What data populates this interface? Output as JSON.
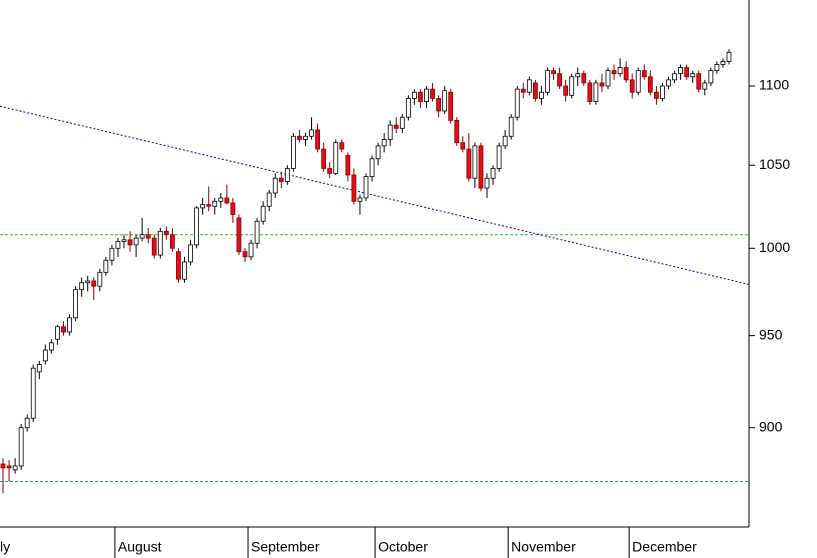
{
  "chart_data": {
    "type": "candlestick",
    "log_scale": true,
    "ylim": [
      849,
      1157
    ],
    "yticks": [
      900,
      950,
      1000,
      1050,
      1100
    ],
    "up_color": "#ffffff",
    "down_color": "#e0101a",
    "hlines": [
      {
        "value": 1008,
        "color": "#22bb22"
      },
      {
        "value": 872,
        "color": "#4477dd"
      }
    ],
    "trend_line": {
      "start": 1087,
      "end": 979,
      "color": "#0000aa"
    },
    "categories": [
      "ly",
      null,
      null,
      null,
      null,
      null,
      null,
      null,
      null,
      null,
      null,
      null,
      null,
      null,
      null,
      null,
      null,
      null,
      null,
      "August",
      null,
      null,
      null,
      null,
      null,
      null,
      null,
      null,
      null,
      null,
      null,
      null,
      null,
      null,
      null,
      null,
      null,
      null,
      null,
      null,
      null,
      "September",
      null,
      null,
      null,
      null,
      null,
      null,
      null,
      null,
      null,
      null,
      null,
      null,
      null,
      null,
      null,
      null,
      null,
      null,
      null,
      null,
      "October",
      null,
      null,
      null,
      null,
      null,
      null,
      null,
      null,
      null,
      null,
      null,
      null,
      null,
      null,
      null,
      null,
      null,
      null,
      null,
      null,
      null,
      "November",
      null,
      null,
      null,
      null,
      null,
      null,
      null,
      null,
      null,
      null,
      null,
      null,
      null,
      null,
      null,
      null,
      null,
      null,
      null,
      "December",
      null,
      null,
      null,
      null,
      null,
      null,
      null,
      null,
      null,
      null,
      null,
      null,
      null,
      null,
      null,
      null
    ],
    "open": [
      881,
      880,
      878,
      880,
      900,
      905,
      930,
      936,
      942,
      948,
      955,
      952,
      960,
      976,
      980,
      981,
      978,
      986,
      993,
      1000,
      1004,
      1005,
      1002,
      1006,
      1008,
      1006,
      996,
      1010,
      1008,
      998,
      982,
      992,
      1002,
      1024,
      1026,
      1025,
      1028,
      1030,
      1027,
      1018,
      998,
      995,
      1003,
      1016,
      1025,
      1033,
      1042,
      1040,
      1048,
      1068,
      1066,
      1068,
      1072,
      1060,
      1048,
      1045,
      1064,
      1056,
      1044,
      1028,
      1030,
      1043,
      1054,
      1062,
      1066,
      1075,
      1073,
      1080,
      1092,
      1096,
      1090,
      1098,
      1092,
      1084,
      1096,
      1078,
      1064,
      1060,
      1042,
      1062,
      1036,
      1042,
      1048,
      1062,
      1068,
      1080,
      1098,
      1096,
      1102,
      1092,
      1096,
      1110,
      1108,
      1100,
      1094,
      1106,
      1108,
      1102,
      1090,
      1102,
      1100,
      1110,
      1108,
      1112,
      1104,
      1096,
      1110,
      1106,
      1096,
      1092,
      1100,
      1104,
      1108,
      1112,
      1106,
      1108,
      1098,
      1102,
      1110,
      1114,
      1116
    ],
    "high": [
      884,
      883,
      884,
      902,
      907,
      934,
      936,
      945,
      948,
      956,
      958,
      962,
      978,
      983,
      984,
      983,
      988,
      995,
      1002,
      1006,
      1008,
      1010,
      1008,
      1018,
      1012,
      1008,
      1012,
      1013,
      1012,
      1000,
      995,
      1005,
      1025,
      1030,
      1037,
      1030,
      1033,
      1038,
      1030,
      1020,
      1000,
      1005,
      1018,
      1028,
      1035,
      1045,
      1046,
      1050,
      1070,
      1072,
      1070,
      1080,
      1076,
      1064,
      1052,
      1066,
      1066,
      1058,
      1048,
      1032,
      1045,
      1056,
      1064,
      1070,
      1078,
      1080,
      1082,
      1094,
      1098,
      1098,
      1100,
      1102,
      1094,
      1100,
      1098,
      1080,
      1068,
      1070,
      1064,
      1064,
      1045,
      1050,
      1064,
      1072,
      1082,
      1100,
      1102,
      1106,
      1104,
      1100,
      1112,
      1112,
      1112,
      1104,
      1108,
      1112,
      1110,
      1104,
      1104,
      1108,
      1112,
      1114,
      1118,
      1116,
      1108,
      1112,
      1114,
      1110,
      1100,
      1102,
      1106,
      1110,
      1114,
      1114,
      1110,
      1110,
      1104,
      1112,
      1116,
      1118,
      1124
    ],
    "low": [
      866,
      872,
      876,
      878,
      898,
      903,
      926,
      934,
      940,
      945,
      950,
      950,
      958,
      972,
      975,
      970,
      975,
      984,
      990,
      995,
      1000,
      998,
      995,
      1004,
      1003,
      994,
      994,
      1005,
      998,
      980,
      980,
      990,
      1000,
      1020,
      1022,
      1020,
      1024,
      1026,
      1015,
      996,
      992,
      993,
      1000,
      1014,
      1022,
      1030,
      1036,
      1038,
      1046,
      1064,
      1062,
      1066,
      1058,
      1046,
      1042,
      1044,
      1058,
      1040,
      1026,
      1020,
      1028,
      1040,
      1050,
      1058,
      1062,
      1070,
      1070,
      1078,
      1088,
      1086,
      1086,
      1090,
      1080,
      1082,
      1076,
      1062,
      1058,
      1040,
      1036,
      1034,
      1030,
      1038,
      1046,
      1060,
      1066,
      1078,
      1092,
      1094,
      1090,
      1088,
      1094,
      1104,
      1098,
      1090,
      1092,
      1100,
      1100,
      1088,
      1088,
      1096,
      1098,
      1104,
      1106,
      1102,
      1092,
      1094,
      1104,
      1094,
      1088,
      1090,
      1098,
      1102,
      1104,
      1104,
      1102,
      1096,
      1094,
      1100,
      1108,
      1112,
      1114
    ],
    "close": [
      879,
      879,
      880,
      900,
      905,
      932,
      934,
      942,
      946,
      955,
      952,
      960,
      976,
      980,
      981,
      978,
      986,
      993,
      1000,
      1004,
      1005,
      1002,
      1006,
      1008,
      1006,
      996,
      1010,
      1008,
      1000,
      982,
      992,
      1002,
      1024,
      1026,
      1025,
      1028,
      1030,
      1027,
      1020,
      998,
      995,
      1003,
      1016,
      1025,
      1033,
      1042,
      1040,
      1048,
      1068,
      1066,
      1068,
      1072,
      1060,
      1048,
      1045,
      1064,
      1060,
      1044,
      1028,
      1030,
      1043,
      1054,
      1062,
      1066,
      1075,
      1073,
      1080,
      1092,
      1096,
      1090,
      1098,
      1092,
      1084,
      1097,
      1078,
      1064,
      1060,
      1042,
      1062,
      1036,
      1042,
      1048,
      1062,
      1068,
      1080,
      1098,
      1096,
      1104,
      1092,
      1096,
      1110,
      1108,
      1100,
      1094,
      1106,
      1108,
      1102,
      1090,
      1102,
      1100,
      1110,
      1108,
      1112,
      1104,
      1096,
      1110,
      1106,
      1096,
      1092,
      1100,
      1104,
      1108,
      1112,
      1106,
      1108,
      1098,
      1102,
      1110,
      1114,
      1116,
      1122
    ]
  }
}
